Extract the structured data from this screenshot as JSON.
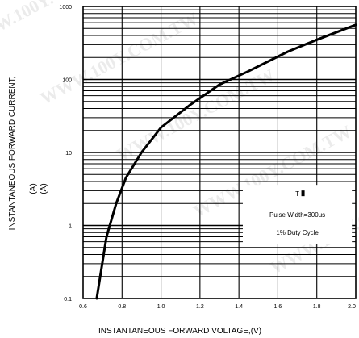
{
  "chart_data": {
    "type": "line",
    "title": "",
    "xlabel": "INSTANTANEOUS FORWARD VOLTAGE,(V)",
    "ylabel": "INSTANTANEOUS FORWARD CURRENT,",
    "ylabel_unit_lines": [
      "(A)",
      "(A)"
    ],
    "xlim": [
      0.6,
      2.0
    ],
    "ylim": [
      0.1,
      1000
    ],
    "y_scale": "log",
    "grid": true,
    "x_ticks": [
      "0.6",
      "0.8",
      "1.0",
      "1.2",
      "1.4",
      "1.6",
      "1.8",
      "2.0"
    ],
    "y_ticks": [
      "1000",
      "100",
      "10",
      "1",
      "0.1"
    ],
    "series": [
      {
        "name": "",
        "color": "#000000",
        "x": [
          0.67,
          0.72,
          0.77,
          0.82,
          0.9,
          1.0,
          1.15,
          1.3,
          1.45,
          1.65,
          1.8,
          2.0
        ],
        "y": [
          0.1,
          0.7,
          2.0,
          4.5,
          10,
          22,
          45,
          85,
          130,
          240,
          350,
          560
        ]
      }
    ],
    "legend": {
      "placement": "bottom-right",
      "lines": [
        "T",
        "Pulse Width=300us",
        "1% Duty Cycle"
      ]
    }
  },
  "watermark": "WWW.100Y.COM.TW"
}
